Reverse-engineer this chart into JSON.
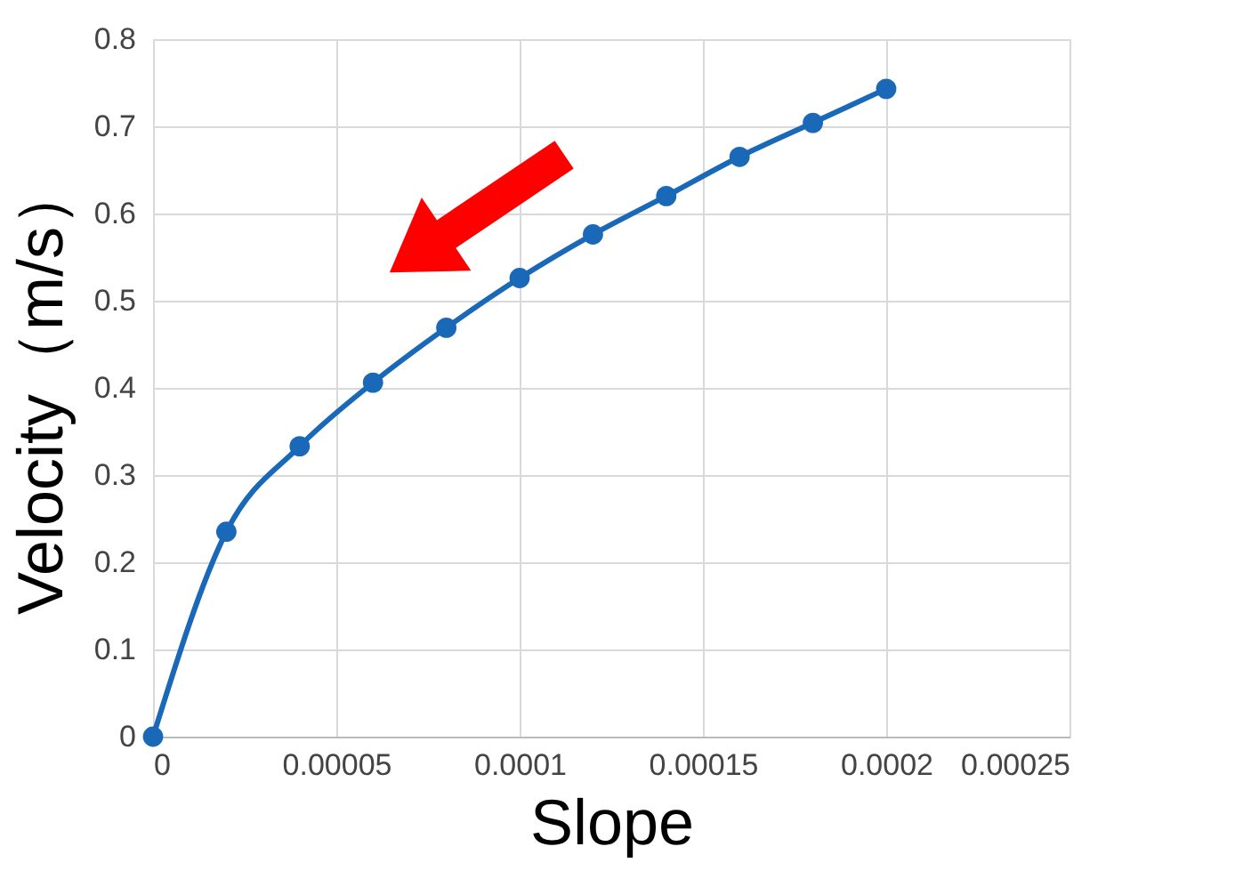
{
  "chart_data": {
    "type": "line",
    "xlabel": "Slope",
    "ylabel": "Velocity（m/s）",
    "x": [
      0,
      2e-05,
      4e-05,
      6e-05,
      8e-05,
      0.0001,
      0.00012,
      0.00014,
      0.00016,
      0.00018,
      0.0002
    ],
    "series": [
      {
        "color": "#1a68b8",
        "values": [
          0,
          0.235,
          0.333,
          0.406,
          0.469,
          0.526,
          0.576,
          0.62,
          0.665,
          0.704,
          0.743
        ]
      }
    ],
    "xlim": [
      0,
      0.00025
    ],
    "xticks": [
      0,
      {
        "value": 5e-05,
        "label": "0.00005"
      },
      0.0001,
      0.00015,
      0.0002,
      0.00025
    ],
    "ylim": [
      0,
      0.8
    ],
    "yticks": [
      0,
      0.1,
      0.2,
      0.3,
      0.4,
      0.5,
      0.6,
      0.7,
      0.8
    ],
    "grid": true,
    "marker": "circle",
    "line_style": "solid"
  }
}
